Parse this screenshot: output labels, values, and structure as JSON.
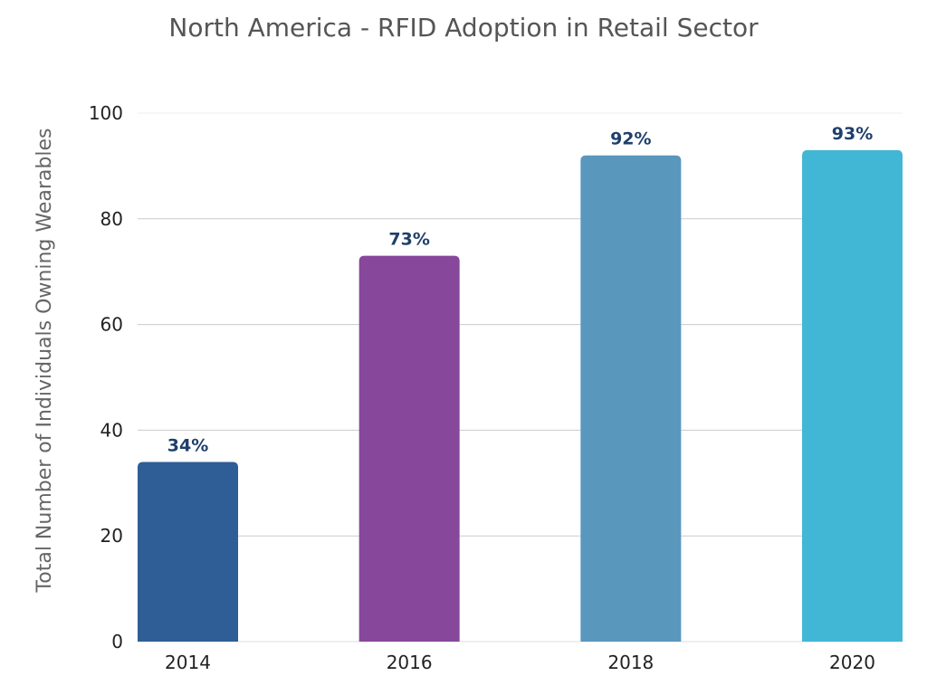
{
  "chart_data": {
    "type": "bar",
    "title": "North America - RFID Adoption in Retail Sector",
    "xlabel": "",
    "ylabel": "Total Number of Individuals Owning Wearables",
    "categories": [
      "2014",
      "2016",
      "2018",
      "2020"
    ],
    "values": [
      34,
      73,
      92,
      93
    ],
    "data_labels": [
      "34%",
      "73%",
      "92%",
      "93%"
    ],
    "colors": [
      "#2E5E95",
      "#87479A",
      "#5A97BC",
      "#42B7D5"
    ],
    "label_color": "#1F3F6B",
    "ylim": [
      0,
      100
    ],
    "yticks": [
      0,
      20,
      40,
      60,
      80,
      100
    ],
    "grid": true,
    "legend": "none"
  }
}
